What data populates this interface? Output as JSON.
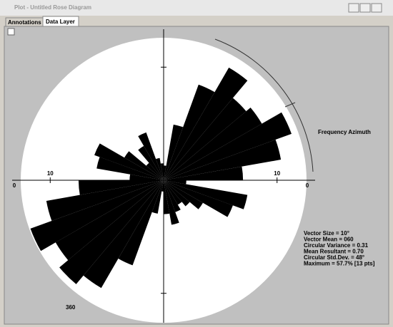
{
  "window": {
    "title": "Plot - Untitled Rose Diagram",
    "tabs": [
      "Annotations",
      "Data Layer"
    ]
  },
  "chart_data": {
    "type": "rose",
    "x": [
      0,
      10,
      20,
      30,
      40,
      50,
      60,
      70,
      80,
      90,
      100,
      110,
      120,
      130,
      140,
      150,
      160,
      170,
      180,
      190,
      200,
      210,
      220,
      230,
      240,
      250,
      260,
      270,
      280,
      290,
      300,
      310,
      320,
      330,
      340,
      350
    ],
    "values": [
      1.3,
      5,
      9,
      11.5,
      9.5,
      10,
      12,
      10.5,
      7,
      2,
      7.5,
      6.5,
      4,
      3,
      2.5,
      3,
      4,
      3,
      1,
      3,
      8,
      11,
      12,
      11,
      12.5,
      10.5,
      7.5,
      3,
      6,
      6.5,
      4,
      2,
      3.5,
      4.5,
      2,
      1.5
    ],
    "color": "#000000",
    "rlim": [
      0,
      12.6
    ],
    "rticks": [
      10
    ],
    "axis_label": "Frequency Azimuth",
    "edge_labels": [
      "0",
      "0"
    ],
    "corner_label": "360",
    "stats": [
      "Vector Size = 10°",
      "Vector Mean = 060",
      "Circular Variance = 0.31",
      "Mean Resultant = 0.70",
      "Circular Std.Dev. = 48°",
      "Maximum = 57.7% [13 pts]"
    ]
  }
}
